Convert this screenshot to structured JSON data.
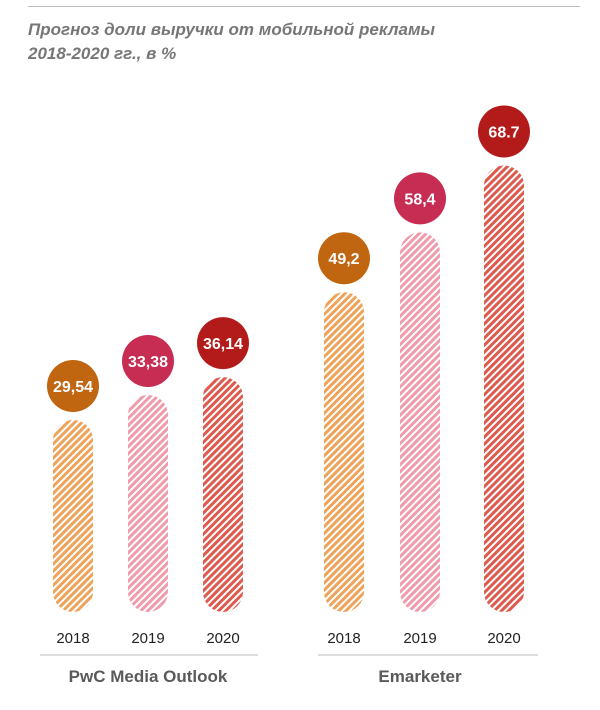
{
  "title_lines": [
    "Прогноз доли выручки от мобильной рекламы",
    "2018-2020 гг., в %"
  ],
  "chart_data": {
    "type": "bar",
    "ylim": [
      0,
      70
    ],
    "grid": false,
    "groups": [
      {
        "name": "PwC Media Outlook",
        "categories": [
          "2018",
          "2019",
          "2020"
        ],
        "values": [
          29.54,
          33.38,
          36.14
        ],
        "value_labels": [
          "29,54",
          "33,38",
          "36,14"
        ]
      },
      {
        "name": "Emarketer",
        "categories": [
          "2018",
          "2019",
          "2020"
        ],
        "values": [
          49.2,
          58.4,
          68.7
        ],
        "value_labels": [
          "49,2",
          "58,4",
          "68.7"
        ]
      }
    ],
    "colors": {
      "2018": "#c06510",
      "2019": "#c72c52",
      "2020": "#b31b1b"
    },
    "bar_fill_colors": {
      "2018": "#eea35a",
      "2019": "#ef9bab",
      "2020": "#de5a4e"
    }
  }
}
